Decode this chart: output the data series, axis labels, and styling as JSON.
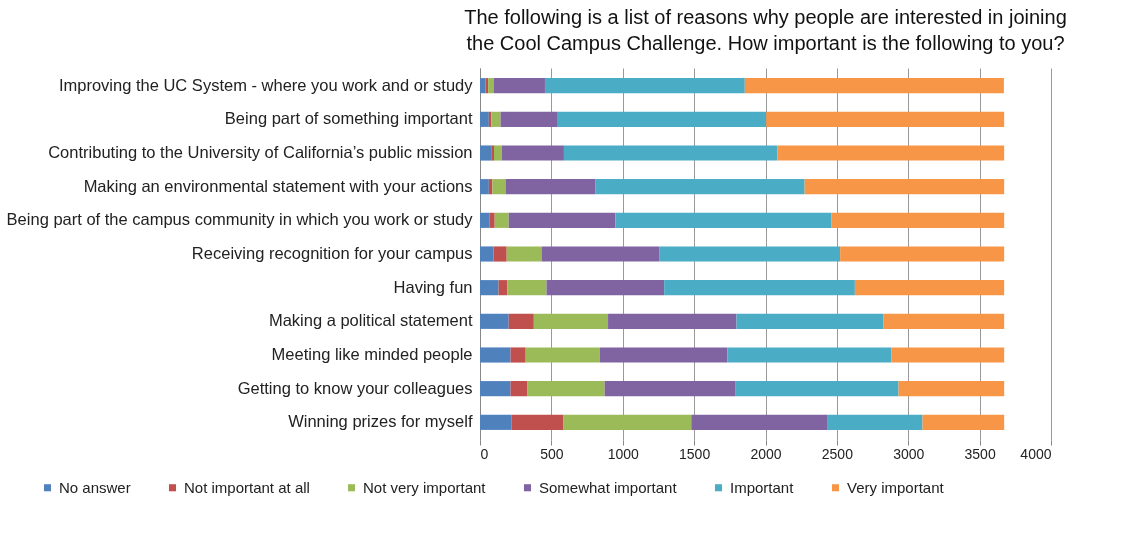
{
  "chart_data": {
    "type": "bar",
    "orientation": "horizontal",
    "stacked": true,
    "title": "The following is a list of reasons why people are interested in joining the Cool Campus Challenge. How important is the following to you?",
    "categories": [
      "Improving the UC System - where you work and or study",
      "Being part of something important",
      "Contributing to the University of California’s public mission",
      "Making an environmental statement with your actions",
      "Being part of the campus community in which you work or study",
      "Receiving recognition for your campus",
      "Having fun",
      "Making a political statement",
      "Meeting like minded people",
      "Getting to know your colleagues",
      "Winning prizes for myself"
    ],
    "series": [
      {
        "name": "No answer",
        "color": "#4f81bd",
        "values": [
          38,
          62,
          79,
          62,
          68,
          95,
          130,
          201,
          214,
          214,
          222
        ]
      },
      {
        "name": "Not important at all",
        "color": "#c0504d",
        "values": [
          19,
          17,
          19,
          25,
          35,
          92,
          62,
          176,
          106,
          119,
          363
        ]
      },
      {
        "name": "Not very important",
        "color": "#9bbb59",
        "values": [
          41,
          65,
          54,
          92,
          98,
          244,
          274,
          520,
          520,
          540,
          895
        ]
      },
      {
        "name": "Somewhat important",
        "color": "#8064a2",
        "values": [
          357,
          401,
          436,
          631,
          748,
          824,
          824,
          900,
          892,
          918,
          956
        ]
      },
      {
        "name": "Important",
        "color": "#4bacc6",
        "values": [
          1400,
          1460,
          1496,
          1464,
          1514,
          1268,
          1336,
          1030,
          1149,
          1141,
          664
        ]
      },
      {
        "name": "Very important",
        "color": "#f79646",
        "values": [
          1815,
          1667,
          1588,
          1398,
          1209,
          1149,
          1046,
          845,
          791,
          740,
          572
        ]
      }
    ],
    "xlim": [
      0,
      4000
    ],
    "xticks": [
      0,
      500,
      1000,
      1500,
      2000,
      2500,
      3000,
      3500,
      4000
    ],
    "grid": "x",
    "legend": "bottom"
  }
}
